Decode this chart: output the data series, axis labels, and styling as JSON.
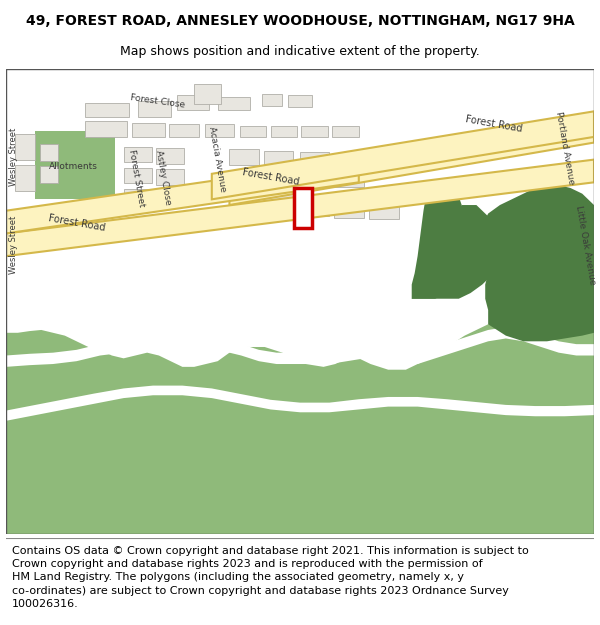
{
  "title": "49, FOREST ROAD, ANNESLEY WOODHOUSE, NOTTINGHAM, NG17 9HA",
  "subtitle": "Map shows position and indicative extent of the property.",
  "footer": "Contains OS data © Crown copyright and database right 2021. This information is subject to\nCrown copyright and database rights 2023 and is reproduced with the permission of\nHM Land Registry. The polygons (including the associated geometry, namely x, y\nco-ordinates) are subject to Crown copyright and database rights 2023 Ordnance Survey\n100026316.",
  "bg_color": "#f2f0eb",
  "road_color": "#fdf3c0",
  "road_border": "#d4b84a",
  "light_green": "#8fba7a",
  "dark_green": "#4d7d42",
  "building_color": "#e8e6e0",
  "building_border": "#b0aea8",
  "plot_fill": "#ffffff",
  "plot_border": "#cc0000",
  "title_fontsize": 10,
  "subtitle_fontsize": 9,
  "footer_fontsize": 8,
  "label_color": "#4a4a4a",
  "label_size": 6.5
}
